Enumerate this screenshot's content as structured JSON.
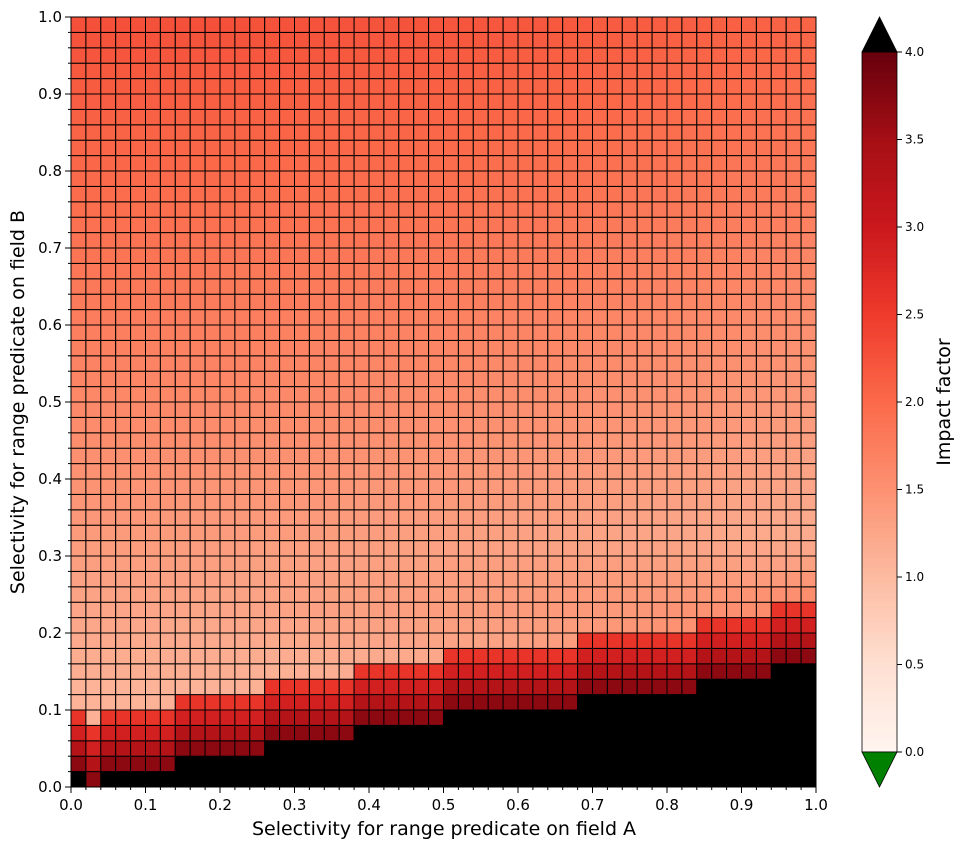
{
  "chart_data": {
    "type": "heatmap",
    "title": "",
    "xlabel": "Selectivity for range predicate on field A",
    "ylabel": "Selectivity for range predicate on field B",
    "xlim": [
      0.0,
      1.0
    ],
    "ylim": [
      0.0,
      1.0
    ],
    "grid_cells": 50,
    "cell_width": 0.02,
    "x_ticks": [
      "0.0",
      "0.1",
      "0.2",
      "0.3",
      "0.4",
      "0.5",
      "0.6",
      "0.7",
      "0.8",
      "0.9",
      "1.0"
    ],
    "y_ticks": [
      "0.0",
      "0.1",
      "0.2",
      "0.3",
      "0.4",
      "0.5",
      "0.6",
      "0.7",
      "0.8",
      "0.9",
      "1.0"
    ],
    "description_of_values": "Impact factor per (selectivity A, selectivity B) cell; black cells are values above the colorbar maximum (over color), near the x-axis diagonal band",
    "boundary_over_row": [
      1,
      0,
      1,
      1,
      1,
      1,
      1,
      2,
      2,
      2,
      2,
      2,
      2,
      3,
      3,
      3,
      3,
      3,
      3,
      4,
      4,
      4,
      4,
      4,
      4,
      5,
      5,
      5,
      5,
      5,
      5,
      5,
      5,
      5,
      6,
      6,
      6,
      6,
      6,
      6,
      6,
      6,
      7,
      7,
      7,
      7,
      7,
      8,
      8,
      8
    ],
    "colorbar": {
      "label": "Impact factor",
      "ticks": [
        "0.0",
        "0.5",
        "1.0",
        "1.5",
        "2.0",
        "2.5",
        "3.0",
        "3.5",
        "4.0"
      ],
      "min": 0.0,
      "max": 4.0,
      "colormap": "Reds",
      "extend": "both",
      "over_color": "#000000",
      "under_color": "#008000"
    },
    "cell_edge_color": "#000000"
  }
}
